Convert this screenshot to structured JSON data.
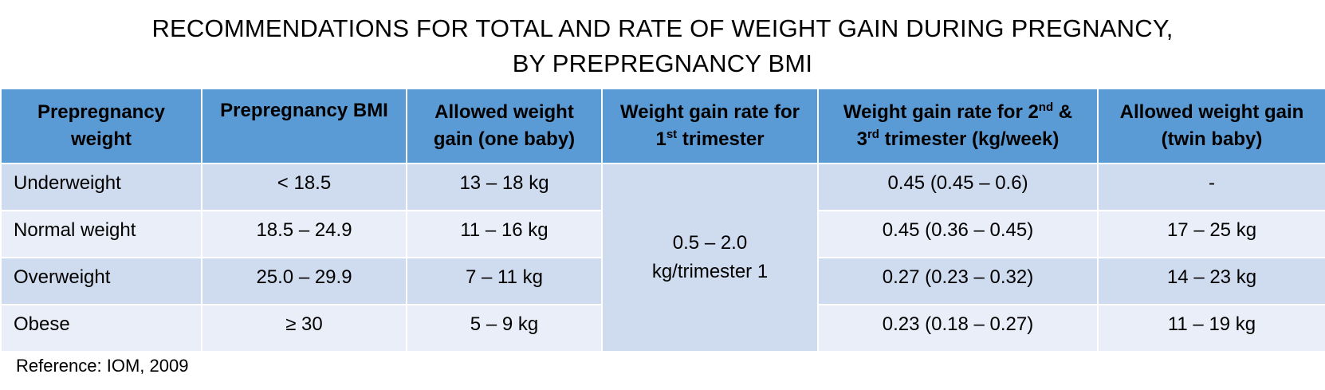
{
  "title": {
    "line1": "RECOMMENDATIONS FOR TOTAL AND RATE OF WEIGHT GAIN DURING PREGNANCY,",
    "line2": "BY PREPREGNANCY BMI"
  },
  "headers": {
    "col1": "Prepregnancy weight",
    "col2": "Prepregnancy BMI",
    "col3": "Allowed weight gain (one baby)",
    "col4_pre": "Weight gain rate for 1",
    "col4_sup": "st",
    "col4_post": " trimester",
    "col5_pre": "Weight gain rate for 2",
    "col5_sup1": "nd",
    "col5_mid": " & 3",
    "col5_sup2": "rd",
    "col5_post": " trimester (kg/week)",
    "col6": "Allowed weight gain (twin baby)"
  },
  "rows": [
    {
      "weight": "Underweight",
      "bmi": "< 18.5",
      "one_baby": "13 – 18 kg",
      "rate_2_3": "0.45 (0.45 – 0.6)",
      "twin": "-"
    },
    {
      "weight": "Normal weight",
      "bmi": "18.5 – 24.9",
      "one_baby": "11 – 16 kg",
      "rate_2_3": "0.45 (0.36 – 0.45)",
      "twin": "17 – 25 kg"
    },
    {
      "weight": "Overweight",
      "bmi": "25.0 – 29.9",
      "one_baby": "7 – 11 kg",
      "rate_2_3": "0.27 (0.23 – 0.32)",
      "twin": "14 – 23 kg"
    },
    {
      "weight": "Obese",
      "bmi": "≥ 30",
      "one_baby": "5 – 9 kg",
      "rate_2_3": "0.23 (0.18 – 0.27)",
      "twin": "11 – 19 kg"
    }
  ],
  "first_trimester": {
    "line1": "0.5 – 2.0",
    "line2": "kg/trimester 1"
  },
  "reference": "Reference: IOM, 2009",
  "colors": {
    "header": "#5b9bd5",
    "row_dark": "#cfdbee",
    "row_light": "#e9eef8"
  }
}
